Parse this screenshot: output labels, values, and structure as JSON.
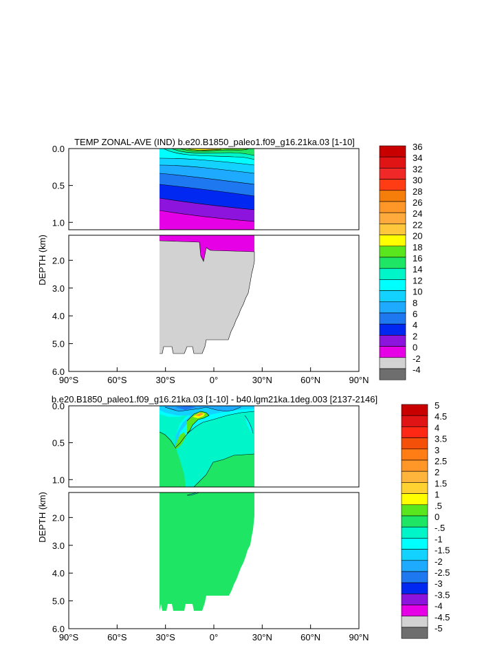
{
  "chart_data": [
    {
      "type": "contour",
      "title": "TEMP ZONAL-AVE (IND) b.e20.B1850_paleo1.f09_g16.21ka.03 [1-10]",
      "ylabel": "DEPTH (km)",
      "x_ticks": [
        "90°S",
        "60°S",
        "30°S",
        "0°",
        "30°N",
        "60°N",
        "90°N"
      ],
      "y_ticks_upper": [
        "0.0",
        "0.5",
        "1.0"
      ],
      "y_ticks_lower": [
        "2.0",
        "3.0",
        "4.0",
        "5.0",
        "6.0"
      ],
      "xlim": [
        -90,
        90
      ],
      "ylim": [
        0,
        6
      ],
      "colorbar": {
        "labels": [
          "36",
          "34",
          "32",
          "30",
          "28",
          "26",
          "24",
          "22",
          "20",
          "18",
          "16",
          "14",
          "12",
          "10",
          "8",
          "6",
          "4",
          "2",
          "0",
          "-2",
          "-4"
        ],
        "colors": [
          "#c80000",
          "#e01414",
          "#f02828",
          "#ff3c14",
          "#f57d0a",
          "#ff9628",
          "#ffaa3c",
          "#ffc83c",
          "#ffff00",
          "#5ae61e",
          "#1ee664",
          "#00f5c8",
          "#00ffff",
          "#14d2ff",
          "#1eaaff",
          "#1e78f0",
          "#0028f0",
          "#8c14dc",
          "#e600e6",
          "#d2d2d2",
          "#6e6e6e"
        ]
      }
    },
    {
      "type": "contour",
      "title": "b.e20.B1850_paleo1.f09_g16.21ka.03 [1-10] - b40.lgm21ka.1deg.003 [2137-2146]",
      "ylabel": "DEPTH (km)",
      "x_ticks": [
        "90°S",
        "60°S",
        "30°S",
        "0°",
        "30°N",
        "60°N",
        "90°N"
      ],
      "y_ticks_upper": [
        "0.0",
        "0.5",
        "1.0"
      ],
      "y_ticks_lower": [
        "2.0",
        "3.0",
        "4.0",
        "5.0",
        "6.0"
      ],
      "xlim": [
        -90,
        90
      ],
      "ylim": [
        0,
        6
      ],
      "colorbar": {
        "labels": [
          "5",
          "4.5",
          "4",
          "3.5",
          "3",
          "2.5",
          "2",
          "1.5",
          "1",
          ".5",
          "0",
          "-.5",
          "-1",
          "-1.5",
          "-2",
          "-2.5",
          "-3",
          "-3.5",
          "-4",
          "-4.5",
          "-5"
        ],
        "colors": [
          "#c80000",
          "#e01414",
          "#ff2814",
          "#f5500a",
          "#ff7d14",
          "#ff9628",
          "#ffb43c",
          "#ffd232",
          "#ffff00",
          "#5ae61e",
          "#1ee664",
          "#00f5c8",
          "#00ffff",
          "#14d2ff",
          "#1eaaff",
          "#1e78f0",
          "#0028f0",
          "#8c14dc",
          "#e600e6",
          "#d2d2d2",
          "#6e6e6e"
        ]
      }
    }
  ]
}
